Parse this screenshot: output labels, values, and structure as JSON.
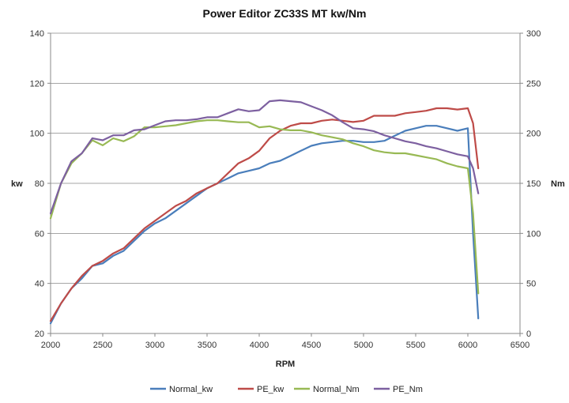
{
  "chart_data": {
    "type": "line",
    "title": "Power Editor ZC33S MT kw/Nm",
    "xlabel": "RPM",
    "ylabel": "kw",
    "y2label": "Nm",
    "xlim": [
      2000,
      6500
    ],
    "ylim": [
      20,
      140
    ],
    "y2lim": [
      0,
      300
    ],
    "x_ticks": [
      "2000",
      "2500",
      "3000",
      "3500",
      "4000",
      "4500",
      "5000",
      "5500",
      "6000",
      "6500"
    ],
    "y_ticks": [
      "20",
      "40",
      "60",
      "80",
      "100",
      "120",
      "140"
    ],
    "y2_ticks": [
      "0",
      "50",
      "100",
      "150",
      "200",
      "250",
      "300"
    ],
    "grid": true,
    "legend_position": "bottom",
    "series": [
      {
        "name": "Normal_kw",
        "axis": "left",
        "color": "#4a7ebb",
        "x": [
          2000,
          2100,
          2200,
          2300,
          2400,
          2500,
          2600,
          2700,
          2800,
          2900,
          3000,
          3100,
          3200,
          3300,
          3400,
          3500,
          3600,
          3700,
          3800,
          3900,
          4000,
          4100,
          4200,
          4300,
          4400,
          4500,
          4600,
          4700,
          4800,
          4900,
          5000,
          5100,
          5200,
          5300,
          5400,
          5500,
          5600,
          5700,
          5800,
          5900,
          6000,
          6050,
          6100
        ],
        "values": [
          24,
          32,
          38,
          42,
          47,
          48,
          51,
          53,
          57,
          61,
          64,
          66,
          69,
          72,
          75,
          78,
          80,
          82,
          84,
          85,
          86,
          88,
          89,
          91,
          93,
          95,
          96,
          96.5,
          97,
          97,
          96.5,
          96.5,
          97,
          99,
          101,
          102,
          103,
          103,
          102,
          101,
          102,
          60,
          26
        ]
      },
      {
        "name": "PE_kw",
        "axis": "left",
        "color": "#be4b48",
        "x": [
          2000,
          2100,
          2200,
          2300,
          2400,
          2500,
          2600,
          2700,
          2800,
          2900,
          3000,
          3100,
          3200,
          3300,
          3400,
          3500,
          3600,
          3700,
          3800,
          3900,
          4000,
          4100,
          4200,
          4300,
          4400,
          4500,
          4600,
          4700,
          4800,
          4900,
          5000,
          5100,
          5200,
          5300,
          5400,
          5500,
          5600,
          5700,
          5800,
          5900,
          6000,
          6050,
          6100
        ],
        "values": [
          25,
          32,
          38,
          43,
          47,
          49,
          52,
          54,
          58,
          62,
          65,
          68,
          71,
          73,
          76,
          78,
          80,
          84,
          88,
          90,
          93,
          98,
          101,
          103,
          104,
          104,
          105,
          105.5,
          105,
          104.5,
          105,
          107,
          107,
          107,
          108,
          108.5,
          109,
          110,
          110,
          109.5,
          110,
          104,
          86
        ]
      },
      {
        "name": "Normal_Nm",
        "axis": "right",
        "color": "#98b954",
        "x": [
          2000,
          2100,
          2200,
          2300,
          2400,
          2500,
          2600,
          2700,
          2800,
          2900,
          3000,
          3100,
          3200,
          3300,
          3400,
          3500,
          3600,
          3700,
          3800,
          3900,
          4000,
          4100,
          4200,
          4300,
          4400,
          4500,
          4600,
          4700,
          4800,
          4900,
          5000,
          5100,
          5200,
          5300,
          5400,
          5500,
          5600,
          5700,
          5800,
          5900,
          6000,
          6050,
          6100
        ],
        "values": [
          115,
          150,
          170,
          180,
          193,
          188,
          195,
          192,
          197,
          206,
          206,
          207,
          208,
          210,
          212,
          213,
          213,
          212,
          211,
          211,
          206,
          207,
          204,
          203,
          203,
          201,
          198,
          196,
          194,
          190,
          187,
          183,
          181,
          180,
          180,
          178,
          176,
          174,
          170,
          167,
          165,
          120,
          40
        ]
      },
      {
        "name": "PE_Nm",
        "axis": "right",
        "color": "#7d60a0",
        "x": [
          2000,
          2100,
          2200,
          2300,
          2400,
          2500,
          2600,
          2700,
          2800,
          2900,
          3000,
          3100,
          3200,
          3300,
          3400,
          3500,
          3600,
          3700,
          3800,
          3900,
          4000,
          4100,
          4200,
          4300,
          4400,
          4500,
          4600,
          4700,
          4800,
          4900,
          5000,
          5100,
          5200,
          5300,
          5400,
          5500,
          5600,
          5700,
          5800,
          5900,
          6000,
          6050,
          6100
        ],
        "values": [
          120,
          150,
          172,
          180,
          195,
          193,
          198,
          198,
          203,
          204,
          208,
          212,
          213,
          213,
          214,
          216,
          216,
          220,
          224,
          222,
          223,
          232,
          233,
          232,
          231,
          227,
          223,
          218,
          211,
          205,
          204,
          202,
          198,
          195,
          192,
          190,
          187,
          185,
          182,
          179,
          177,
          165,
          140
        ]
      }
    ]
  }
}
